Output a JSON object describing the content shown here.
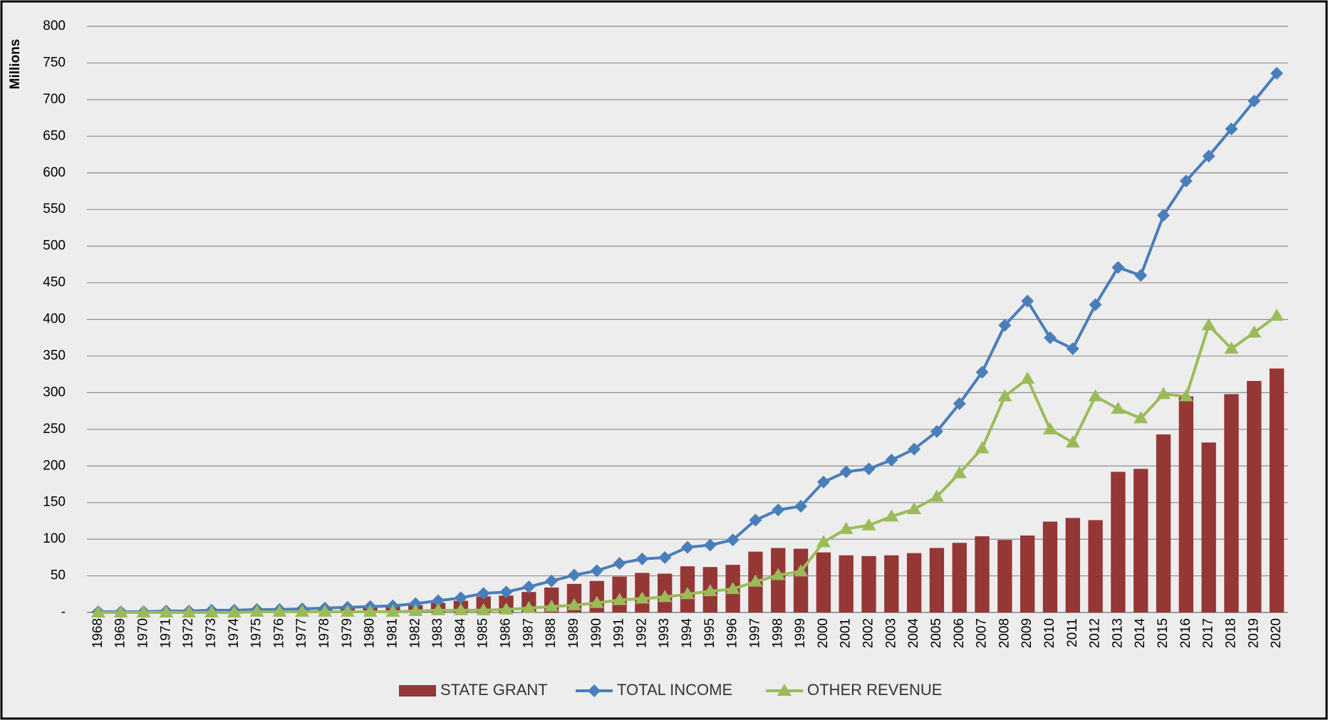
{
  "chart_data": {
    "type": "bar-line",
    "y_label": "Millions",
    "categories": [
      "1968",
      "1969",
      "1970",
      "1971",
      "1972",
      "1973",
      "1974",
      "1975",
      "1976",
      "1977",
      "1978",
      "1979",
      "1980",
      "1981",
      "1982",
      "1983",
      "1984",
      "1985",
      "1986",
      "1987",
      "1988",
      "1989",
      "1990",
      "1991",
      "1992",
      "1993",
      "1994",
      "1995",
      "1996",
      "1997",
      "1998",
      "1999",
      "2000",
      "2001",
      "2002",
      "2003",
      "2004",
      "2005",
      "2006",
      "2007",
      "2008",
      "2009",
      "2010",
      "2011",
      "2012",
      "2013",
      "2014",
      "2015",
      "2016",
      "2017",
      "2018",
      "2019",
      "2020"
    ],
    "series": [
      {
        "name": "STATE GRANT",
        "kind": "bar",
        "color": "#953735",
        "values": [
          1,
          1,
          1,
          2,
          2,
          3,
          3,
          3,
          4,
          4,
          5,
          6,
          7,
          8,
          10,
          13,
          16,
          22,
          23,
          28,
          34,
          39,
          43,
          49,
          54,
          53,
          63,
          62,
          65,
          83,
          88,
          87,
          82,
          78,
          77,
          78,
          81,
          88,
          95,
          104,
          99,
          105,
          124,
          129,
          126,
          192,
          196,
          243,
          295,
          232,
          298,
          316,
          333
        ]
      },
      {
        "name": "TOTAL INCOME",
        "kind": "line",
        "marker": "diamond",
        "color": "#4a7ebb",
        "values": [
          1,
          1,
          1,
          2,
          2,
          3,
          3,
          4,
          4,
          5,
          6,
          7,
          8,
          9,
          12,
          16,
          20,
          26,
          28,
          35,
          43,
          51,
          57,
          67,
          73,
          75,
          89,
          92,
          99,
          126,
          140,
          145,
          178,
          192,
          196,
          208,
          223,
          247,
          285,
          328,
          392,
          425,
          375,
          360,
          420,
          471,
          460,
          542,
          589,
          623,
          660,
          698,
          736
        ]
      },
      {
        "name": "OTHER REVENUE",
        "kind": "line",
        "marker": "triangle",
        "color": "#9bbb59",
        "values": [
          0,
          0,
          0,
          0,
          0,
          0,
          0,
          1,
          1,
          1,
          1,
          1,
          1,
          1,
          2,
          3,
          3,
          3,
          4,
          6,
          8,
          10,
          13,
          17,
          19,
          21,
          25,
          29,
          32,
          42,
          51,
          56,
          96,
          114,
          119,
          131,
          141,
          158,
          190,
          224,
          295,
          319,
          250,
          232,
          295,
          278,
          265,
          298,
          295,
          392,
          360,
          382,
          405
        ]
      }
    ],
    "ylim": [
      0,
      800
    ],
    "yticks": [
      {
        "value": 0,
        "label": "-"
      },
      50,
      100,
      150,
      200,
      250,
      300,
      350,
      400,
      450,
      500,
      550,
      600,
      650,
      700,
      750,
      800
    ],
    "grid": true
  }
}
